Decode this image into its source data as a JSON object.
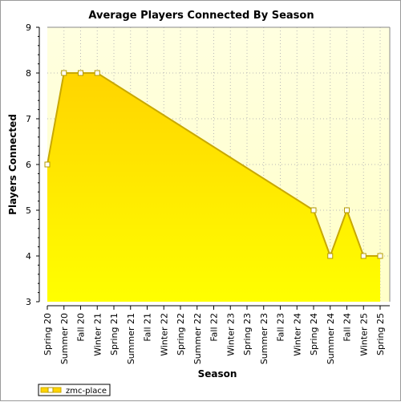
{
  "chart_data": {
    "type": "area",
    "title": "Average Players Connected By Season",
    "xlabel": "Season",
    "ylabel": "Players Connected",
    "ylim": [
      3,
      9
    ],
    "yticks": [
      3,
      4,
      5,
      6,
      7,
      8,
      9
    ],
    "grid": true,
    "legend_position": "bottom-left",
    "colors": {
      "fill_top": "#ffd400",
      "fill_bottom": "#ffff00",
      "line": "#c8a800",
      "marker_fill": "#ffffff",
      "marker_stroke": "#b59a00",
      "plot_bg_top": "#ffffe0",
      "plot_bg_bottom": "#ffffc8",
      "grid": "#b8b8b8"
    },
    "categories": [
      "Spring 20",
      "Summer 20",
      "Fall 20",
      "Winter 21",
      "Spring 21",
      "Summer 21",
      "Fall 21",
      "Winter 22",
      "Spring 22",
      "Summer 22",
      "Fall 22",
      "Winter 23",
      "Spring 23",
      "Summer 23",
      "Fall 23",
      "Winter 24",
      "Spring 24",
      "Summer 24",
      "Fall 24",
      "Winter 25",
      "Spring 25"
    ],
    "series": [
      {
        "name": "zmc-place",
        "values": [
          6,
          8,
          8,
          8,
          null,
          null,
          null,
          null,
          null,
          null,
          null,
          null,
          null,
          null,
          null,
          null,
          5,
          4,
          5,
          4,
          4
        ]
      }
    ]
  }
}
